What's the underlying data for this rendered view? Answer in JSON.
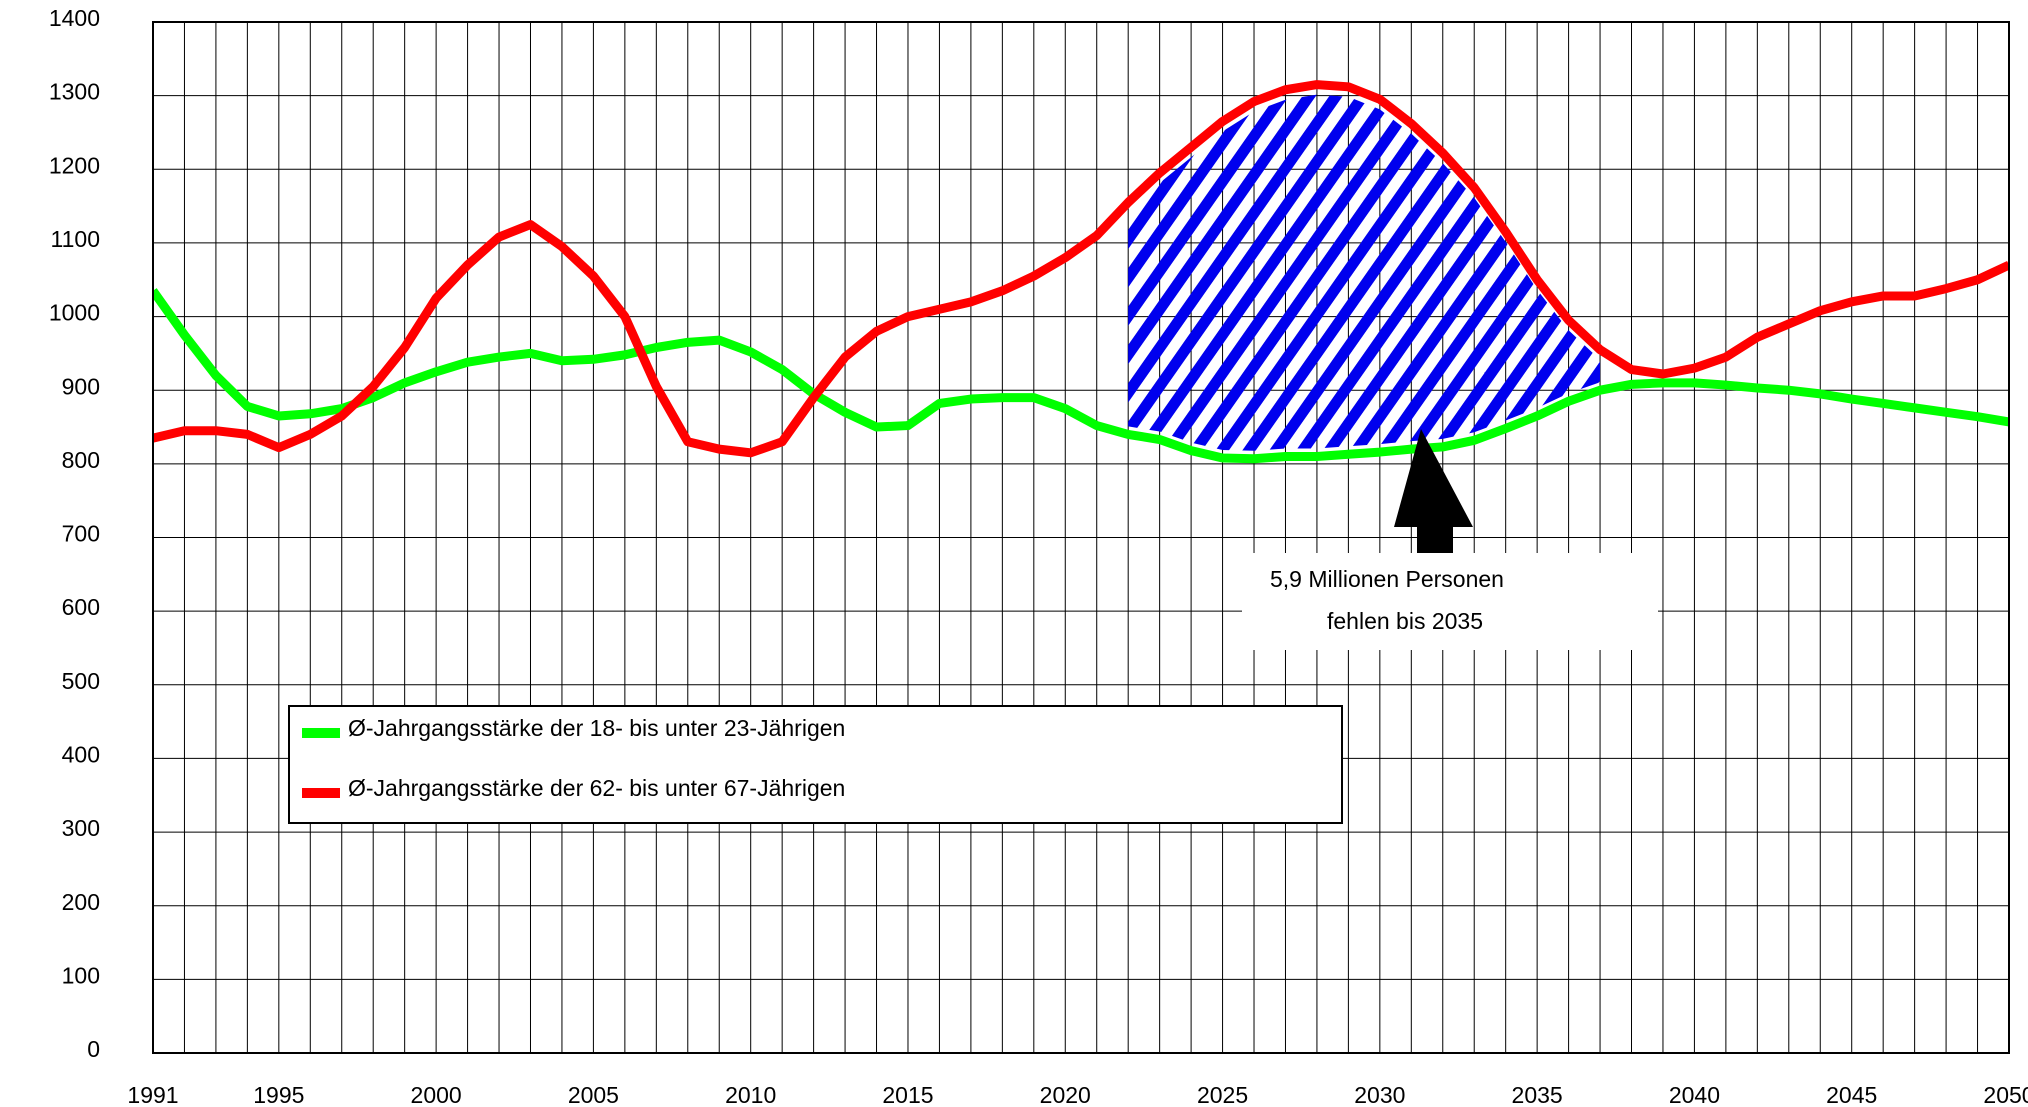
{
  "chart_data": {
    "type": "line",
    "x": [
      1991,
      1992,
      1993,
      1994,
      1995,
      1996,
      1997,
      1998,
      1999,
      2000,
      2001,
      2002,
      2003,
      2004,
      2005,
      2006,
      2007,
      2008,
      2009,
      2010,
      2011,
      2012,
      2013,
      2014,
      2015,
      2016,
      2017,
      2018,
      2019,
      2020,
      2021,
      2022,
      2023,
      2024,
      2025,
      2026,
      2027,
      2028,
      2029,
      2030,
      2031,
      2032,
      2033,
      2034,
      2035,
      2036,
      2037,
      2038,
      2039,
      2040,
      2041,
      2042,
      2043,
      2044,
      2045,
      2046,
      2047,
      2048,
      2049,
      2050
    ],
    "series": [
      {
        "name": "Ø-Jahrgangsstärke der 18- bis unter 23-Jährigen",
        "color": "#00ff00",
        "values": [
          1035,
          975,
          920,
          878,
          865,
          868,
          875,
          890,
          910,
          925,
          938,
          945,
          950,
          940,
          942,
          948,
          958,
          965,
          968,
          952,
          928,
          895,
          870,
          850,
          852,
          882,
          888,
          890,
          890,
          875,
          852,
          840,
          833,
          818,
          808,
          807,
          810,
          810,
          813,
          816,
          820,
          823,
          832,
          848,
          865,
          885,
          900,
          908,
          910,
          910,
          907,
          903,
          900,
          895,
          888,
          882,
          876,
          870,
          864,
          857
        ]
      },
      {
        "name": "Ø-Jahrgangsstärke der 62- bis unter 67-Jährigen",
        "color": "#ff0000",
        "values": [
          835,
          845,
          845,
          840,
          822,
          840,
          865,
          905,
          958,
          1025,
          1070,
          1108,
          1125,
          1095,
          1055,
          1000,
          905,
          830,
          820,
          815,
          830,
          890,
          945,
          980,
          1000,
          1010,
          1020,
          1035,
          1055,
          1080,
          1110,
          1155,
          1195,
          1230,
          1265,
          1292,
          1308,
          1315,
          1312,
          1295,
          1262,
          1222,
          1175,
          1115,
          1050,
          995,
          955,
          928,
          922,
          930,
          945,
          972,
          990,
          1008,
          1020,
          1028,
          1028,
          1038,
          1050,
          1070
        ]
      }
    ],
    "xlim": [
      1991,
      2050
    ],
    "xticks": [
      1991,
      1995,
      2000,
      2005,
      2010,
      2015,
      2020,
      2025,
      2030,
      2035,
      2040,
      2045,
      2050
    ],
    "ylim": [
      0,
      1400
    ],
    "yticks": [
      0,
      100,
      200,
      300,
      400,
      500,
      600,
      700,
      800,
      900,
      1000,
      1100,
      1200,
      1300,
      1400
    ],
    "grid": true,
    "annotation": [
      "5,9 Millionen Personen",
      "fehlen bis 2035"
    ],
    "hatch_color": "#0000ee"
  }
}
